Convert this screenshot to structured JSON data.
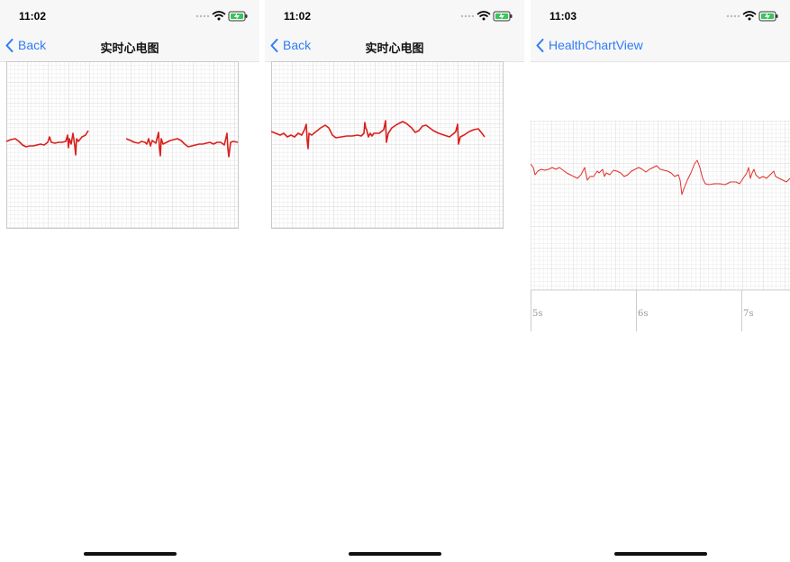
{
  "screens": [
    {
      "time": "11:02",
      "back_label": "Back",
      "title": "实时心电图",
      "ecg_color": "#d9201c"
    },
    {
      "time": "11:02",
      "back_label": "Back",
      "title": "实时心电图",
      "ecg_color": "#d9201c"
    },
    {
      "time": "11:03",
      "back_label": "HealthChartView",
      "title": "",
      "ecg_color": "#e0302a",
      "x_ticks": [
        "5s",
        "6s",
        "7s"
      ]
    }
  ],
  "colors": {
    "accent": "#2f7cf6",
    "grid_major": "#c9c9c9",
    "grid_minor": "#ececec",
    "battery": "#34c759"
  },
  "icons": [
    "chevron-left-icon",
    "wifi-icon",
    "battery-icon",
    "cellular-icon"
  ]
}
